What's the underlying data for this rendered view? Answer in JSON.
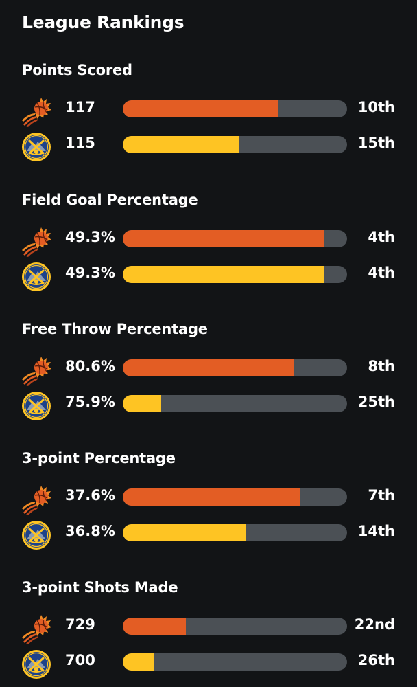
{
  "title": "League Rankings",
  "colors": {
    "background": "#121416",
    "track": "#4b5055",
    "suns_bar": "#e35d24",
    "nuggets_bar": "#fec423"
  },
  "teams": {
    "suns": {
      "logo_icon": "suns-logo-icon"
    },
    "nuggets": {
      "logo_icon": "nuggets-logo-icon"
    }
  },
  "sections": [
    {
      "title": "Points Scored",
      "suns": {
        "value": "117",
        "rank": "10th",
        "percentile": 0.69
      },
      "nuggets": {
        "value": "115",
        "rank": "15th",
        "percentile": 0.52
      }
    },
    {
      "title": "Field Goal Percentage",
      "suns": {
        "value": "49.3%",
        "rank": "4th",
        "percentile": 0.9
      },
      "nuggets": {
        "value": "49.3%",
        "rank": "4th",
        "percentile": 0.9
      }
    },
    {
      "title": "Free Throw Percentage",
      "suns": {
        "value": "80.6%",
        "rank": "8th",
        "percentile": 0.76
      },
      "nuggets": {
        "value": "75.9%",
        "rank": "25th",
        "percentile": 0.17
      }
    },
    {
      "title": "3-point Percentage",
      "suns": {
        "value": "37.6%",
        "rank": "7th",
        "percentile": 0.79
      },
      "nuggets": {
        "value": "36.8%",
        "rank": "14th",
        "percentile": 0.55
      }
    },
    {
      "title": "3-point Shots Made",
      "suns": {
        "value": "729",
        "rank": "22nd",
        "percentile": 0.28
      },
      "nuggets": {
        "value": "700",
        "rank": "26th",
        "percentile": 0.14
      }
    }
  ]
}
